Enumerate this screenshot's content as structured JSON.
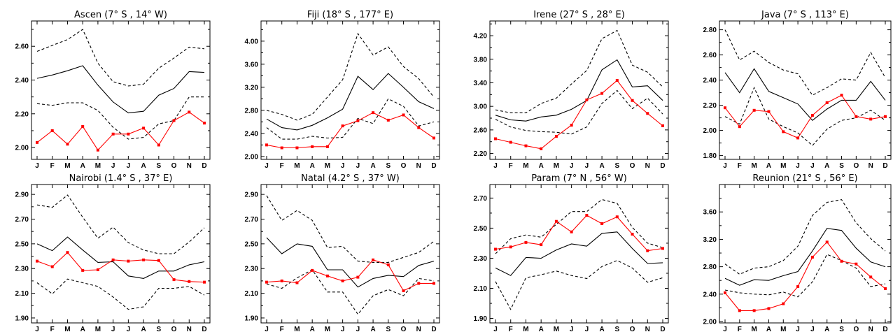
{
  "chart_data": [
    {
      "type": "line",
      "title": "Ascen (7° S , 14° W)",
      "categories": [
        "J",
        "F",
        "M",
        "A",
        "M",
        "J",
        "J",
        "A",
        "S",
        "O",
        "N",
        "D"
      ],
      "ylim": [
        1.93,
        2.75
      ],
      "yticks": [
        2.0,
        2.2,
        2.4,
        2.6
      ],
      "series": [
        {
          "style": "solid-black",
          "values": [
            2.41,
            2.43,
            2.455,
            2.485,
            2.37,
            2.27,
            2.205,
            2.215,
            2.31,
            2.35,
            2.45,
            2.445
          ]
        },
        {
          "style": "dashed-upper",
          "values": [
            2.57,
            2.605,
            2.64,
            2.7,
            2.5,
            2.39,
            2.365,
            2.375,
            2.47,
            2.53,
            2.595,
            2.585
          ]
        },
        {
          "style": "dashed-lower",
          "values": [
            2.26,
            2.25,
            2.265,
            2.265,
            2.22,
            2.12,
            2.05,
            2.06,
            2.14,
            2.16,
            2.3,
            2.3
          ]
        },
        {
          "style": "red-markers",
          "values": [
            2.03,
            2.1,
            2.02,
            2.125,
            1.985,
            2.08,
            2.08,
            2.115,
            2.015,
            2.16,
            2.21,
            2.145
          ]
        }
      ]
    },
    {
      "type": "line",
      "title": "Fiji (18° S , 177° E)",
      "categories": [
        "J",
        "F",
        "M",
        "A",
        "M",
        "J",
        "J",
        "A",
        "S",
        "O",
        "N",
        "D"
      ],
      "ylim": [
        1.95,
        4.35
      ],
      "yticks": [
        2.0,
        2.4,
        2.8,
        3.2,
        3.6,
        4.0
      ],
      "series": [
        {
          "style": "solid-black",
          "values": [
            2.65,
            2.5,
            2.46,
            2.54,
            2.67,
            2.82,
            3.39,
            3.16,
            3.44,
            3.2,
            2.95,
            2.83
          ]
        },
        {
          "style": "dashed-upper",
          "values": [
            2.8,
            2.73,
            2.63,
            2.73,
            3.03,
            3.33,
            4.13,
            3.76,
            3.9,
            3.56,
            3.35,
            3.03
          ]
        },
        {
          "style": "dashed-lower",
          "values": [
            2.5,
            2.3,
            2.3,
            2.35,
            2.32,
            2.33,
            2.66,
            2.57,
            3.0,
            2.87,
            2.53,
            2.6
          ]
        },
        {
          "style": "red-markers",
          "values": [
            2.2,
            2.15,
            2.15,
            2.17,
            2.17,
            2.53,
            2.62,
            2.76,
            2.63,
            2.72,
            2.5,
            2.32
          ]
        }
      ]
    },
    {
      "type": "line",
      "title": "Irene (27° S , 28° E)",
      "categories": [
        "J",
        "F",
        "M",
        "A",
        "M",
        "J",
        "J",
        "A",
        "S",
        "O",
        "N",
        "D"
      ],
      "ylim": [
        2.1,
        4.45
      ],
      "yticks": [
        2.2,
        2.6,
        3.0,
        3.4,
        3.8,
        4.2
      ],
      "series": [
        {
          "style": "solid-black",
          "values": [
            2.85,
            2.77,
            2.75,
            2.82,
            2.85,
            2.95,
            3.1,
            3.62,
            3.79,
            3.33,
            3.35,
            3.1
          ]
        },
        {
          "style": "dashed-upper",
          "values": [
            2.94,
            2.89,
            2.89,
            3.05,
            3.14,
            3.38,
            3.61,
            4.15,
            4.29,
            3.7,
            3.58,
            3.33
          ]
        },
        {
          "style": "dashed-lower",
          "values": [
            2.78,
            2.65,
            2.59,
            2.57,
            2.56,
            2.53,
            2.65,
            3.05,
            3.27,
            2.96,
            3.14,
            2.87
          ]
        },
        {
          "style": "red-markers",
          "values": [
            2.45,
            2.39,
            2.33,
            2.28,
            2.49,
            2.68,
            3.11,
            3.22,
            3.44,
            3.1,
            2.88,
            2.67
          ]
        }
      ]
    },
    {
      "type": "line",
      "title": "Java (7° S , 113° E)",
      "categories": [
        "J",
        "F",
        "M",
        "A",
        "M",
        "J",
        "J",
        "A",
        "S",
        "O",
        "N",
        "D"
      ],
      "ylim": [
        1.77,
        2.87
      ],
      "yticks": [
        1.8,
        2.0,
        2.2,
        2.4,
        2.6,
        2.8
      ],
      "series": [
        {
          "style": "solid-black",
          "values": [
            2.46,
            2.3,
            2.49,
            2.31,
            2.26,
            2.21,
            2.08,
            2.17,
            2.24,
            2.24,
            2.39,
            2.24
          ]
        },
        {
          "style": "dashed-upper",
          "values": [
            2.8,
            2.56,
            2.63,
            2.54,
            2.48,
            2.45,
            2.28,
            2.34,
            2.41,
            2.4,
            2.62,
            2.42
          ]
        },
        {
          "style": "dashed-lower",
          "values": [
            2.11,
            2.05,
            2.34,
            2.09,
            2.03,
            1.98,
            1.88,
            2.01,
            2.08,
            2.1,
            2.16,
            2.08
          ]
        },
        {
          "style": "red-markers",
          "values": [
            2.18,
            2.03,
            2.16,
            2.15,
            1.99,
            1.94,
            2.12,
            2.22,
            2.28,
            2.11,
            2.09,
            2.11
          ]
        }
      ]
    },
    {
      "type": "line",
      "title": "Nairobi (1.4° S , 37° E)",
      "categories": [
        "J",
        "F",
        "M",
        "A",
        "M",
        "J",
        "J",
        "A",
        "S",
        "O",
        "N",
        "D"
      ],
      "ylim": [
        1.86,
        2.98
      ],
      "yticks": [
        1.9,
        2.1,
        2.3,
        2.5,
        2.7,
        2.9
      ],
      "series": [
        {
          "style": "solid-black",
          "values": [
            2.5,
            2.445,
            2.555,
            2.45,
            2.35,
            2.355,
            2.24,
            2.22,
            2.28,
            2.28,
            2.33,
            2.355
          ]
        },
        {
          "style": "dashed-upper",
          "values": [
            2.815,
            2.795,
            2.895,
            2.715,
            2.545,
            2.635,
            2.51,
            2.45,
            2.42,
            2.42,
            2.515,
            2.63
          ]
        },
        {
          "style": "dashed-lower",
          "values": [
            2.185,
            2.095,
            2.215,
            2.185,
            2.155,
            2.07,
            1.97,
            1.99,
            2.14,
            2.14,
            2.155,
            2.085
          ]
        },
        {
          "style": "red-markers",
          "values": [
            2.36,
            2.315,
            2.43,
            2.285,
            2.29,
            2.37,
            2.36,
            2.37,
            2.365,
            2.21,
            2.195,
            2.19
          ]
        }
      ]
    },
    {
      "type": "line",
      "title": "Natal (4.2° S , 37° W)",
      "categories": [
        "J",
        "F",
        "M",
        "A",
        "M",
        "J",
        "J",
        "A",
        "S",
        "O",
        "N",
        "D"
      ],
      "ylim": [
        1.86,
        2.98
      ],
      "yticks": [
        1.9,
        2.1,
        2.3,
        2.5,
        2.7,
        2.9
      ],
      "series": [
        {
          "style": "solid-black",
          "values": [
            2.55,
            2.42,
            2.5,
            2.48,
            2.29,
            2.29,
            2.15,
            2.22,
            2.245,
            2.235,
            2.325,
            2.36
          ]
        },
        {
          "style": "dashed-upper",
          "values": [
            2.89,
            2.69,
            2.77,
            2.69,
            2.47,
            2.48,
            2.36,
            2.35,
            2.35,
            2.39,
            2.43,
            2.52
          ]
        },
        {
          "style": "dashed-lower",
          "values": [
            2.175,
            2.14,
            2.225,
            2.29,
            2.11,
            2.11,
            1.93,
            2.08,
            2.13,
            2.08,
            2.22,
            2.2
          ]
        },
        {
          "style": "red-markers",
          "values": [
            2.19,
            2.2,
            2.185,
            2.285,
            2.24,
            2.2,
            2.23,
            2.37,
            2.33,
            2.12,
            2.18,
            2.18
          ]
        }
      ]
    },
    {
      "type": "line",
      "title": "Param (7° N , 56° W)",
      "categories": [
        "J",
        "F",
        "M",
        "A",
        "M",
        "J",
        "J",
        "A",
        "S",
        "O",
        "N",
        "D"
      ],
      "ylim": [
        1.87,
        2.79
      ],
      "yticks": [
        1.9,
        2.1,
        2.3,
        2.5,
        2.7
      ],
      "series": [
        {
          "style": "solid-black",
          "values": [
            2.235,
            2.185,
            2.305,
            2.3,
            2.355,
            2.395,
            2.38,
            2.465,
            2.475,
            2.365,
            2.265,
            2.27
          ]
        },
        {
          "style": "dashed-upper",
          "values": [
            2.33,
            2.43,
            2.455,
            2.44,
            2.525,
            2.61,
            2.61,
            2.69,
            2.665,
            2.505,
            2.4,
            2.37
          ]
        },
        {
          "style": "dashed-lower",
          "values": [
            2.145,
            1.96,
            2.17,
            2.19,
            2.215,
            2.185,
            2.165,
            2.245,
            2.285,
            2.235,
            2.14,
            2.17
          ]
        },
        {
          "style": "red-markers",
          "values": [
            2.36,
            2.375,
            2.405,
            2.39,
            2.545,
            2.475,
            2.585,
            2.53,
            2.575,
            2.46,
            2.35,
            2.365
          ]
        }
      ]
    },
    {
      "type": "line",
      "title": "Reunion (21° S , 56° E)",
      "categories": [
        "J",
        "F",
        "M",
        "A",
        "M",
        "J",
        "J",
        "A",
        "S",
        "O",
        "N",
        "D"
      ],
      "ylim": [
        1.98,
        4.0
      ],
      "yticks": [
        2.0,
        2.4,
        2.8,
        3.2,
        3.6
      ],
      "series": [
        {
          "style": "solid-black",
          "values": [
            2.63,
            2.53,
            2.61,
            2.6,
            2.67,
            2.73,
            3.03,
            3.36,
            3.33,
            3.07,
            2.87,
            2.8
          ]
        },
        {
          "style": "dashed-upper",
          "values": [
            2.84,
            2.69,
            2.78,
            2.8,
            2.89,
            3.1,
            3.55,
            3.74,
            3.78,
            3.44,
            3.21,
            3.03
          ]
        },
        {
          "style": "dashed-lower",
          "values": [
            2.46,
            2.42,
            2.4,
            2.39,
            2.43,
            2.36,
            2.58,
            2.98,
            2.89,
            2.78,
            2.51,
            2.55
          ]
        },
        {
          "style": "red-markers",
          "values": [
            2.42,
            2.16,
            2.16,
            2.19,
            2.26,
            2.51,
            2.94,
            3.16,
            2.88,
            2.84,
            2.65,
            2.48
          ]
        }
      ]
    }
  ]
}
